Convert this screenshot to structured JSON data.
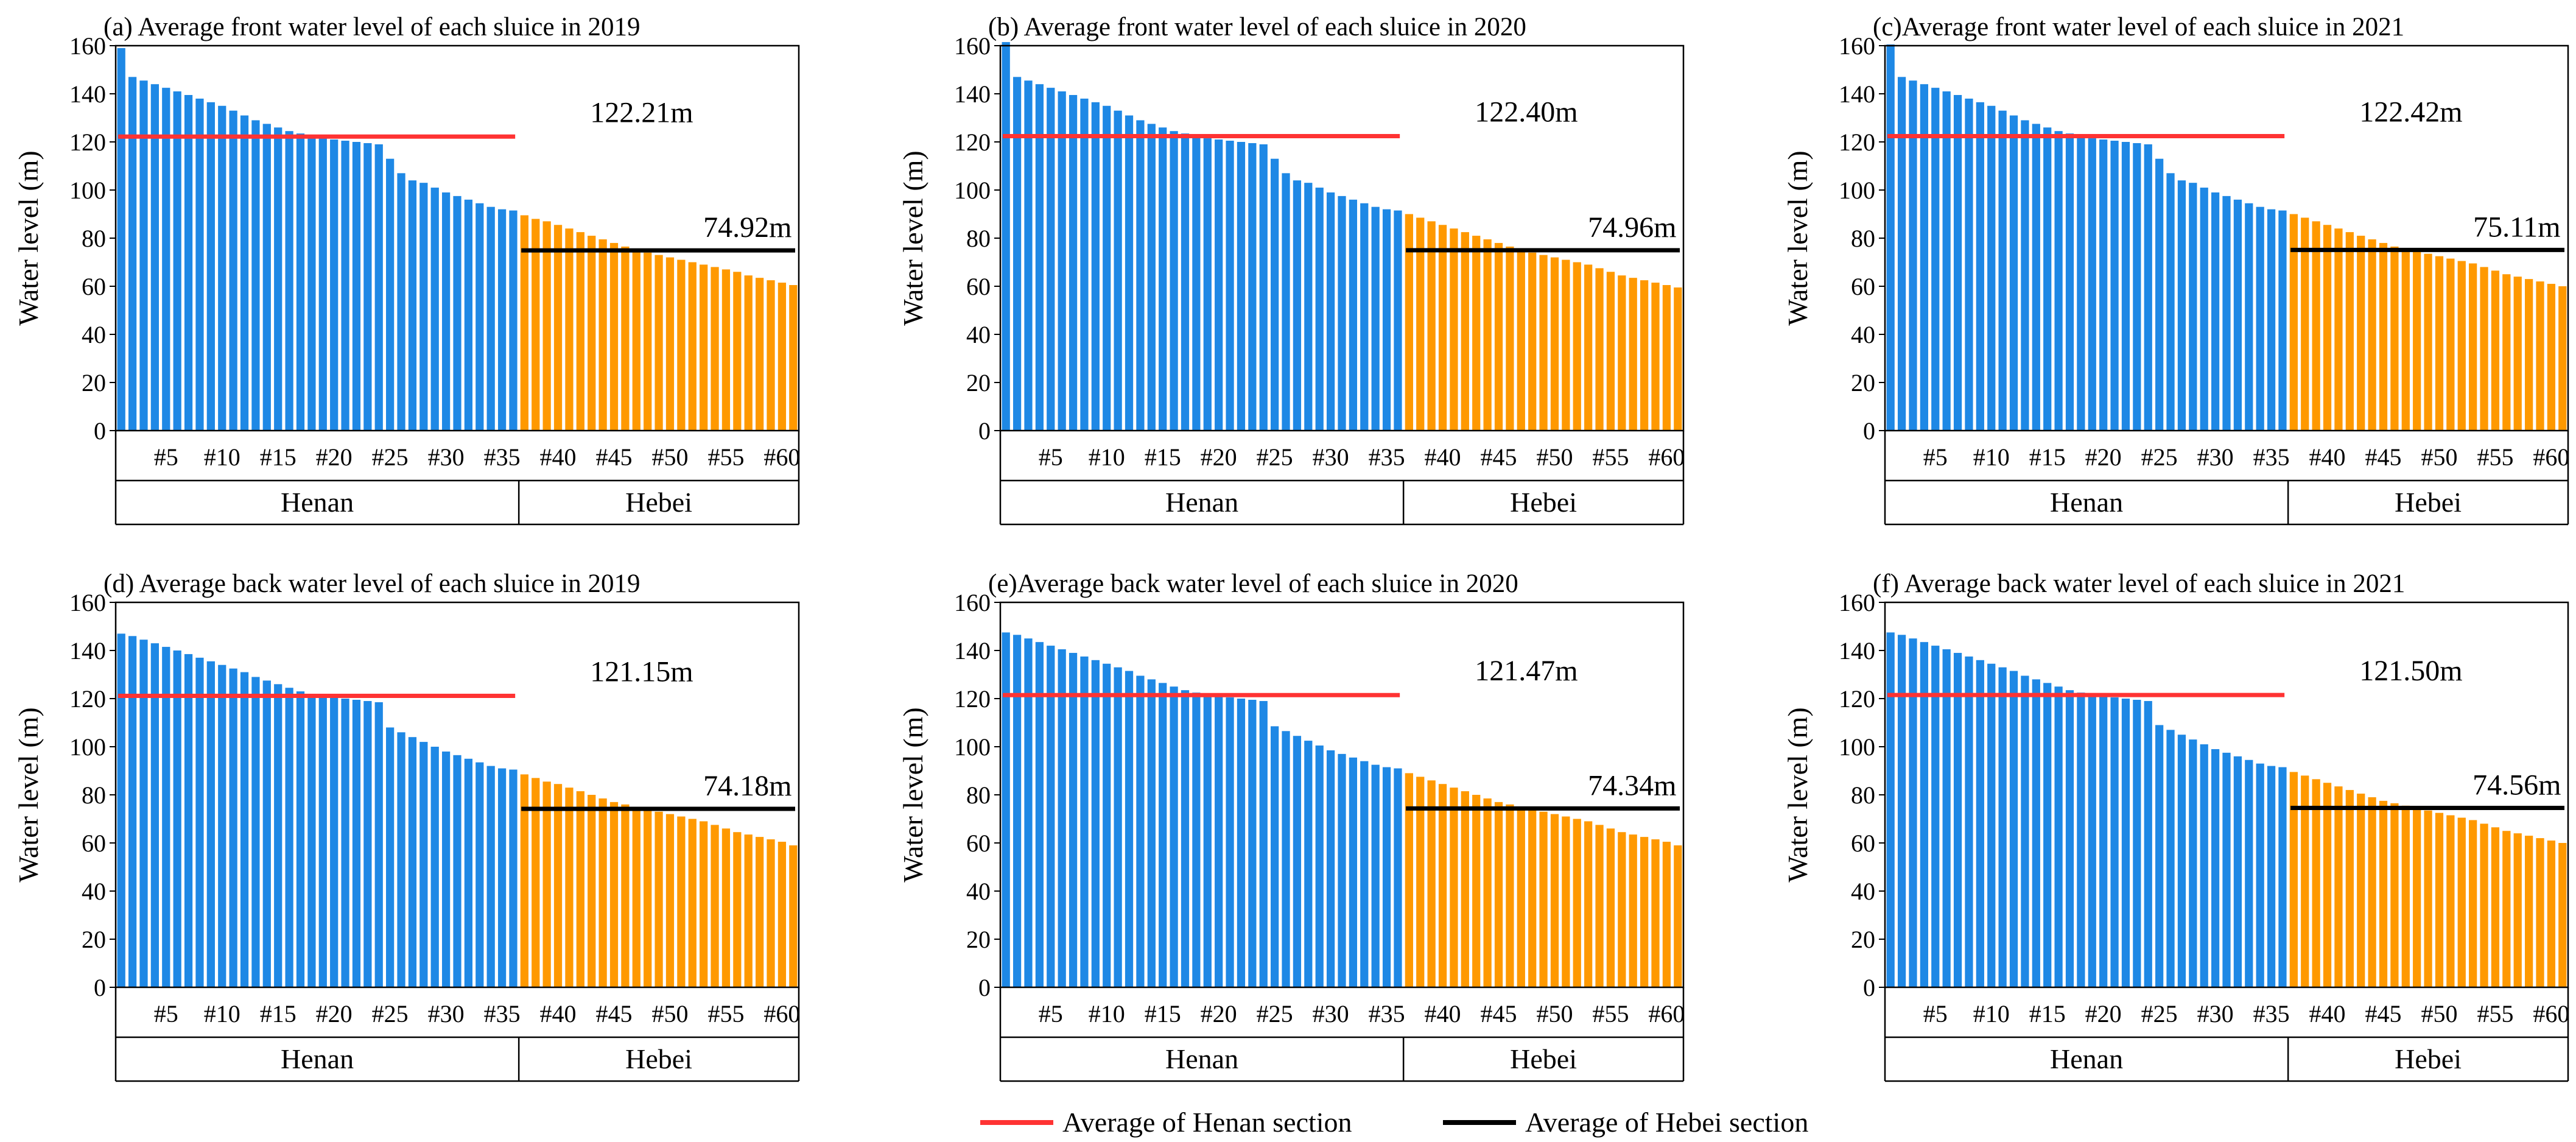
{
  "chart_data": [
    {
      "type": "bar",
      "title": "(a)  Average front water level of each sluice in 2019",
      "ylabel": "Water level (m)",
      "ylim": [
        0,
        160
      ],
      "yticks": [
        0,
        20,
        40,
        60,
        80,
        100,
        120,
        140,
        160
      ],
      "xtick_labels": [
        "#5",
        "#10",
        "#15",
        "#20",
        "#25",
        "#30",
        "#35",
        "#40",
        "#45",
        "#50",
        "#55",
        "#60"
      ],
      "sections": [
        {
          "name": "Henan",
          "count": 36,
          "color": "#1e88e5"
        },
        {
          "name": "Hebei",
          "count": 25,
          "color": "#ff9900"
        }
      ],
      "values": [
        159,
        147,
        145.5,
        144,
        142.5,
        141,
        139.5,
        138,
        136.5,
        135,
        133,
        131,
        129,
        127.5,
        126,
        124.5,
        123.5,
        122.5,
        121.5,
        121,
        120.5,
        120,
        119.5,
        119,
        113,
        107,
        104,
        103,
        101,
        99,
        97.5,
        96,
        94.5,
        93,
        92,
        91.5,
        89.5,
        88,
        87,
        85.5,
        84,
        82.5,
        81,
        79.5,
        78,
        76.5,
        75,
        74,
        73,
        72,
        71,
        70,
        69,
        68,
        67,
        66,
        64.5,
        63.5,
        62.5,
        61.5,
        60.5
      ],
      "henan_avg": 122.21,
      "hebei_avg": 74.92,
      "henan_avg_label": "122.21m",
      "hebei_avg_label": "74.92m"
    },
    {
      "type": "bar",
      "title": "(b)  Average front water level of each sluice in 2020",
      "ylabel": "Water level (m)",
      "ylim": [
        0,
        160
      ],
      "yticks": [
        0,
        20,
        40,
        60,
        80,
        100,
        120,
        140,
        160
      ],
      "xtick_labels": [
        "#5",
        "#10",
        "#15",
        "#20",
        "#25",
        "#30",
        "#35",
        "#40",
        "#45",
        "#50",
        "#55",
        "#60"
      ],
      "sections": [
        {
          "name": "Henan",
          "count": 36,
          "color": "#1e88e5"
        },
        {
          "name": "Hebei",
          "count": 25,
          "color": "#ff9900"
        }
      ],
      "values": [
        161.5,
        147,
        145.5,
        144,
        142.5,
        141,
        139.5,
        138,
        136.5,
        135,
        133,
        131,
        129,
        127.5,
        126,
        124.5,
        123.5,
        122.5,
        121.5,
        121,
        120.5,
        120,
        119.5,
        119,
        113,
        107,
        104,
        103,
        101,
        99,
        97.5,
        96,
        94.5,
        93,
        92,
        91.5,
        90,
        88.5,
        87,
        85.5,
        84,
        82.5,
        81,
        79.5,
        78,
        76.5,
        75,
        74,
        73,
        72,
        71,
        70,
        69,
        67.5,
        66,
        64.5,
        63.5,
        62.5,
        61.5,
        60.5,
        59.5
      ],
      "henan_avg": 122.4,
      "hebei_avg": 74.96,
      "henan_avg_label": "122.40m",
      "hebei_avg_label": "74.96m"
    },
    {
      "type": "bar",
      "title": "(c)Average front water level of each sluice in 2021",
      "ylabel": "Water level (m)",
      "ylim": [
        0,
        160
      ],
      "yticks": [
        0,
        20,
        40,
        60,
        80,
        100,
        120,
        140,
        160
      ],
      "xtick_labels": [
        "#5",
        "#10",
        "#15",
        "#20",
        "#25",
        "#30",
        "#35",
        "#40",
        "#45",
        "#50",
        "#55",
        "#60"
      ],
      "sections": [
        {
          "name": "Henan",
          "count": 36,
          "color": "#1e88e5"
        },
        {
          "name": "Hebei",
          "count": 25,
          "color": "#ff9900"
        }
      ],
      "values": [
        160.5,
        147,
        145.5,
        144,
        142.5,
        141,
        139.5,
        138,
        136.5,
        135,
        133,
        131,
        129,
        127.5,
        126,
        124.5,
        123.5,
        122.5,
        121.5,
        121,
        120.5,
        120,
        119.5,
        119,
        113,
        107,
        104,
        103,
        101,
        99,
        97.5,
        96,
        94.5,
        93,
        92,
        91.5,
        90,
        88.5,
        87,
        85.5,
        84,
        82.5,
        81,
        79.5,
        78,
        76.5,
        75.5,
        74.5,
        73.5,
        72.5,
        71.5,
        70.5,
        69.5,
        68,
        66.5,
        65,
        64,
        63,
        62,
        61,
        60
      ],
      "henan_avg": 122.42,
      "hebei_avg": 75.11,
      "henan_avg_label": "122.42m",
      "hebei_avg_label": "75.11m"
    },
    {
      "type": "bar",
      "title": "(d) Average back water level of each sluice in 2019",
      "ylabel": "Water level (m)",
      "ylim": [
        0,
        160
      ],
      "yticks": [
        0,
        20,
        40,
        60,
        80,
        100,
        120,
        140,
        160
      ],
      "xtick_labels": [
        "#5",
        "#10",
        "#15",
        "#20",
        "#25",
        "#30",
        "#35",
        "#40",
        "#45",
        "#50",
        "#55",
        "#60"
      ],
      "sections": [
        {
          "name": "Henan",
          "count": 36,
          "color": "#1e88e5"
        },
        {
          "name": "Hebei",
          "count": 25,
          "color": "#ff9900"
        }
      ],
      "values": [
        147,
        146,
        144.5,
        143,
        141.5,
        140,
        138.5,
        137,
        135.5,
        134,
        132.5,
        131,
        129,
        127.5,
        126,
        124.5,
        123,
        122,
        121,
        120.5,
        120,
        119.5,
        119,
        118.5,
        108,
        106,
        104,
        102,
        100,
        98,
        96.5,
        95,
        93.5,
        92,
        91,
        90.5,
        88.5,
        87,
        85.5,
        84.5,
        83,
        81.5,
        80,
        78.5,
        77,
        76,
        75,
        74,
        73,
        72,
        71,
        70,
        69,
        67.5,
        66,
        64.5,
        63.5,
        62.5,
        61.5,
        60.5,
        59
      ],
      "henan_avg": 121.15,
      "hebei_avg": 74.18,
      "henan_avg_label": "121.15m",
      "hebei_avg_label": "74.18m"
    },
    {
      "type": "bar",
      "title": "(e)Average back water level of each sluice in 2020",
      "ylabel": "Water level (m)",
      "ylim": [
        0,
        160
      ],
      "yticks": [
        0,
        20,
        40,
        60,
        80,
        100,
        120,
        140,
        160
      ],
      "xtick_labels": [
        "#5",
        "#10",
        "#15",
        "#20",
        "#25",
        "#30",
        "#35",
        "#40",
        "#45",
        "#50",
        "#55",
        "#60"
      ],
      "sections": [
        {
          "name": "Henan",
          "count": 36,
          "color": "#1e88e5"
        },
        {
          "name": "Hebei",
          "count": 25,
          "color": "#ff9900"
        }
      ],
      "values": [
        147.5,
        146.5,
        145,
        143.5,
        142,
        140.5,
        139,
        137.5,
        136,
        134.5,
        133,
        131.5,
        129.5,
        128,
        126.5,
        125,
        123.5,
        122.5,
        121.5,
        121,
        120.5,
        120,
        119.5,
        119,
        108.5,
        106.5,
        104.5,
        102.5,
        100.5,
        98.5,
        97,
        95.5,
        94,
        92.5,
        91.5,
        91,
        89,
        87.5,
        86,
        84.5,
        83,
        81.5,
        80,
        78.5,
        77,
        76,
        75,
        74,
        73,
        72,
        71,
        70,
        69,
        67.5,
        66,
        64.5,
        63.5,
        62.5,
        61.5,
        60.5,
        59
      ],
      "henan_avg": 121.47,
      "hebei_avg": 74.34,
      "henan_avg_label": "121.47m",
      "hebei_avg_label": "74.34m"
    },
    {
      "type": "bar",
      "title": "(f) Average back water level of each sluice in 2021",
      "ylabel": "Water level (m)",
      "ylim": [
        0,
        160
      ],
      "yticks": [
        0,
        20,
        40,
        60,
        80,
        100,
        120,
        140,
        160
      ],
      "xtick_labels": [
        "#5",
        "#10",
        "#15",
        "#20",
        "#25",
        "#30",
        "#35",
        "#40",
        "#45",
        "#50",
        "#55",
        "#60"
      ],
      "sections": [
        {
          "name": "Henan",
          "count": 36,
          "color": "#1e88e5"
        },
        {
          "name": "Hebei",
          "count": 25,
          "color": "#ff9900"
        }
      ],
      "values": [
        147.5,
        146.5,
        145,
        143.5,
        142,
        140.5,
        139,
        137.5,
        136,
        134.5,
        133,
        131.5,
        129.5,
        128,
        126.5,
        125,
        123.5,
        122.5,
        121.5,
        121,
        120.5,
        120,
        119.5,
        119,
        109,
        107,
        105,
        103,
        101,
        99,
        97.5,
        96,
        94.5,
        93,
        92,
        91.5,
        89.5,
        88,
        86.5,
        85,
        83.5,
        82,
        80.5,
        79,
        77.5,
        76.5,
        75.5,
        74.5,
        73.5,
        72.5,
        71.5,
        70.5,
        69.5,
        68,
        66.5,
        65,
        64,
        63,
        62,
        61,
        60
      ],
      "henan_avg": 121.5,
      "hebei_avg": 74.56,
      "henan_avg_label": "121.50m",
      "hebei_avg_label": "74.56m"
    }
  ],
  "legend": {
    "henan_label": "Average of Henan section",
    "hebei_label": "Average of Hebei section",
    "henan_color": "#ff3333",
    "hebei_color": "#000000"
  }
}
